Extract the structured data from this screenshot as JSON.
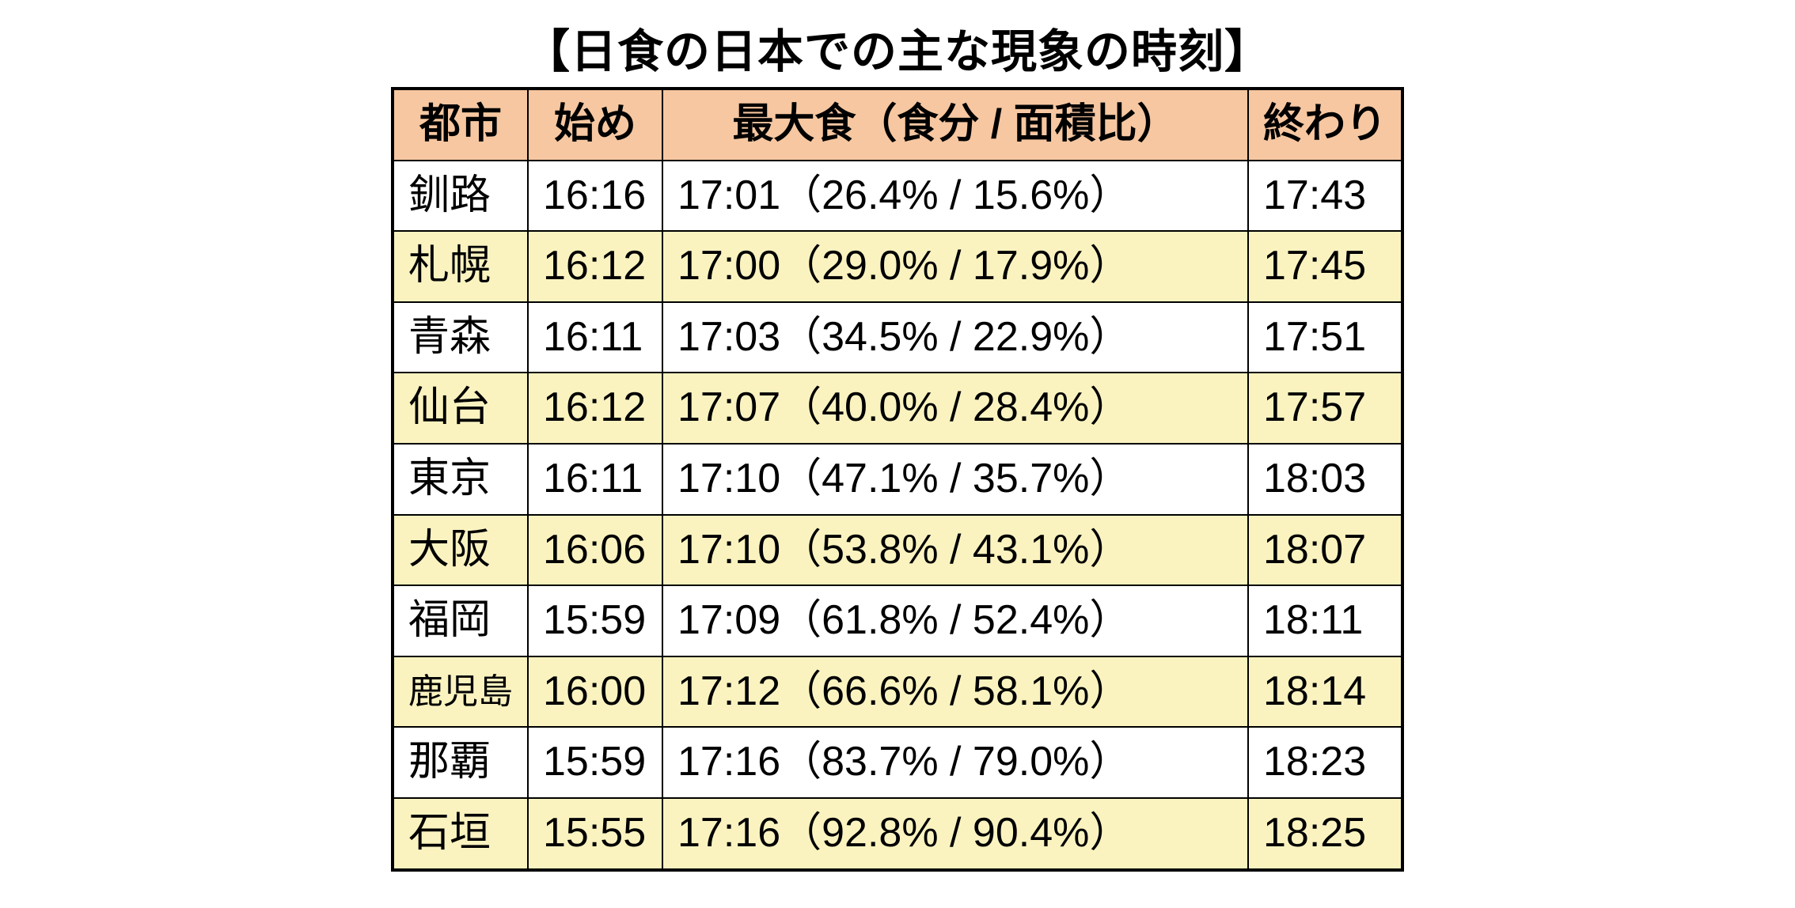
{
  "title": "【日食の日本での主な現象の時刻】",
  "colors": {
    "header_bg": "#f6c7a1",
    "stripe_bg": "#faf3c0",
    "border": "#000000",
    "page_bg": "#ffffff",
    "text": "#000000"
  },
  "table": {
    "type": "table",
    "columns": [
      {
        "key": "city",
        "label": "都市"
      },
      {
        "key": "start",
        "label": "始め"
      },
      {
        "key": "max",
        "label": "最大食（食分 / 面積比）"
      },
      {
        "key": "end",
        "label": "終わり"
      }
    ],
    "rows": [
      {
        "city": "釧路",
        "start": "16:16",
        "max_time": "17:01",
        "mag": "26.4%",
        "area": "15.6%",
        "end": "17:43"
      },
      {
        "city": "札幌",
        "start": "16:12",
        "max_time": "17:00",
        "mag": "29.0%",
        "area": "17.9%",
        "end": "17:45"
      },
      {
        "city": "青森",
        "start": "16:11",
        "max_time": "17:03",
        "mag": "34.5%",
        "area": "22.9%",
        "end": "17:51"
      },
      {
        "city": "仙台",
        "start": "16:12",
        "max_time": "17:07",
        "mag": "40.0%",
        "area": "28.4%",
        "end": "17:57"
      },
      {
        "city": "東京",
        "start": "16:11",
        "max_time": "17:10",
        "mag": "47.1%",
        "area": "35.7%",
        "end": "18:03"
      },
      {
        "city": "大阪",
        "start": "16:06",
        "max_time": "17:10",
        "mag": "53.8%",
        "area": "43.1%",
        "end": "18:07"
      },
      {
        "city": "福岡",
        "start": "15:59",
        "max_time": "17:09",
        "mag": "61.8%",
        "area": "52.4%",
        "end": "18:11"
      },
      {
        "city": "鹿児島",
        "start": "16:00",
        "max_time": "17:12",
        "mag": "66.6%",
        "area": "58.1%",
        "end": "18:14",
        "city_small": true
      },
      {
        "city": "那覇",
        "start": "15:59",
        "max_time": "17:16",
        "mag": "83.7%",
        "area": "79.0%",
        "end": "18:23"
      },
      {
        "city": "石垣",
        "start": "15:55",
        "max_time": "17:16",
        "mag": "92.8%",
        "area": "90.4%",
        "end": "18:25"
      }
    ],
    "header_fontsize": 52,
    "cell_fontsize": 52,
    "title_fontsize": 58,
    "border_width_outer": 4,
    "border_width_inner": 2
  }
}
